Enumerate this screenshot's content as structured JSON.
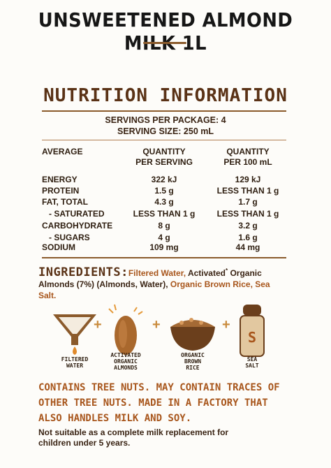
{
  "product": {
    "title": "UNSWEETENED ALMOND MILK 1L"
  },
  "nutrition": {
    "heading": "NUTRITION INFORMATION",
    "servings_per_package": "SERVINGS PER PACKAGE: 4",
    "serving_size": "SERVING SIZE: 250 mL",
    "header": {
      "col0": "AVERAGE",
      "col1a": "QUANTITY",
      "col1b": "PER SERVING",
      "col2a": "QUANTITY",
      "col2b": "PER 100 mL"
    },
    "rows": [
      {
        "name": "ENERGY",
        "per_serving": "322 kJ",
        "per_100ml": "129 kJ"
      },
      {
        "name": "PROTEIN",
        "per_serving": "1.5 g",
        "per_100ml": "LESS THAN 1 g"
      },
      {
        "name": "FAT, TOTAL",
        "per_serving": "4.3 g",
        "per_100ml": "1.7 g"
      },
      {
        "name": "- SATURATED",
        "per_serving": "LESS THAN 1 g",
        "per_100ml": "LESS THAN 1 g"
      },
      {
        "name": "CARBOHYDRATE",
        "per_serving": "8 g",
        "per_100ml": "3.2 g"
      },
      {
        "name": "- SUGARS",
        "per_serving": "4 g",
        "per_100ml": "1.6 g"
      },
      {
        "name": "SODIUM",
        "per_serving": "109 mg",
        "per_100ml": "44 mg"
      }
    ]
  },
  "ingredients": {
    "heading": "INGREDIENTS:",
    "part1": "Filtered Water,",
    "part2": " Activated",
    "asterisk": "*",
    "part3": " Organic",
    "part4": "Almonds (7%) (Almonds, Water),",
    "part5": " Organic Brown Rice, Sea",
    "part6": "Salt."
  },
  "icons": {
    "filtered_water": [
      "FILTERED",
      "WATER"
    ],
    "almonds": [
      "ACTIVATED",
      "ORGANIC",
      "ALMONDS"
    ],
    "rice": [
      "ORGANIC",
      "BROWN",
      "RICE"
    ],
    "salt": [
      "SEA",
      "SALT"
    ],
    "salt_letter": "S",
    "plus": "+"
  },
  "allergen": {
    "line1": "CONTAINS TREE NUTS. MAY CONTAIN TRACES OF",
    "line2": "OTHER TREE NUTS. MADE IN A FACTORY THAT",
    "line3": "ALSO HANDLES MILK AND SOY."
  },
  "footnote": {
    "line1": "Not suitable as a complete milk replacement for",
    "line2": "children under 5 years."
  },
  "colors": {
    "accent": "#a8561c",
    "brown": "#5a3216",
    "rule": "#8a5a2b"
  }
}
